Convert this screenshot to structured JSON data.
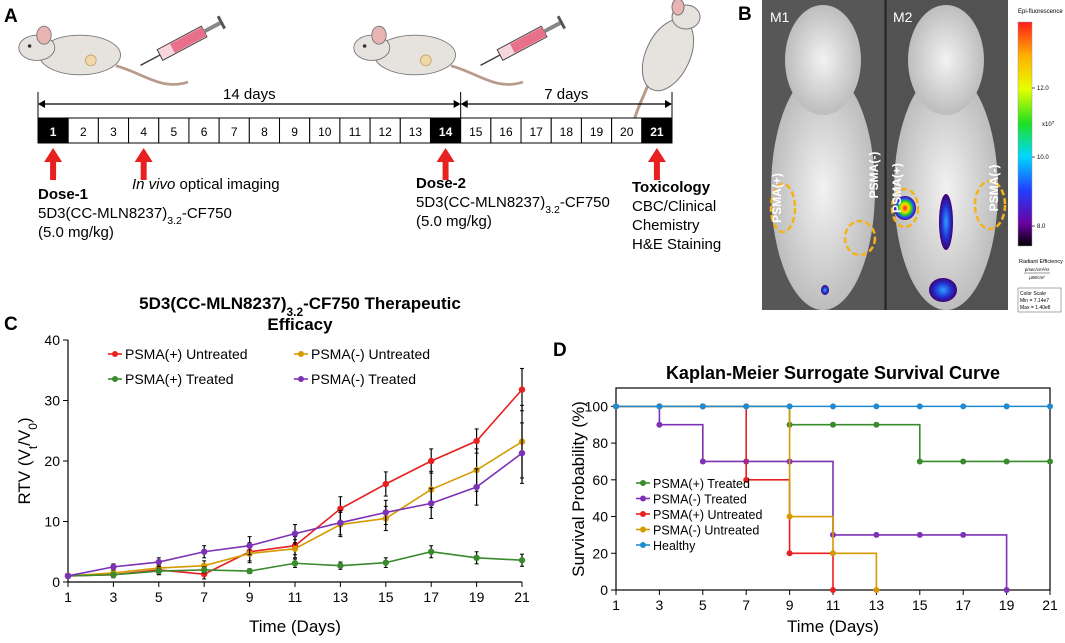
{
  "panel_a": {
    "label": "A",
    "days": [
      1,
      2,
      3,
      4,
      5,
      6,
      7,
      8,
      9,
      10,
      11,
      12,
      13,
      14,
      15,
      16,
      17,
      18,
      19,
      20,
      21
    ],
    "interval_1": "14 days",
    "interval_2": "7 days",
    "dose_1": {
      "title": "Dose-1",
      "drug": [
        "5D3(CC-MLN8237)",
        "3.2",
        "-CF750"
      ],
      "dose": "(5.0 mg/kg)"
    },
    "imaging": [
      "In vivo",
      " optical imaging"
    ],
    "dose_2": {
      "title": "Dose-2",
      "drug": [
        "5D3(CC-MLN8237)",
        "3.2",
        "-CF750"
      ],
      "dose": "(5.0 mg/kg)"
    },
    "toxicology": {
      "title": "Toxicology",
      "items": [
        "CBC/Clinical",
        "Chemistry",
        "H&E Staining"
      ]
    }
  },
  "panel_b": {
    "label": "B",
    "mice": [
      "M1",
      "M2"
    ],
    "tumors": [
      "PSMA(+)",
      "PSMA(-)",
      "PSMA(+)",
      "PSMA(-)"
    ],
    "colorbar": {
      "title": "Epi-fluorescence",
      "ticks": [
        "12.0",
        "10.0",
        "8.0"
      ],
      "scale": [
        "x10",
        "7"
      ],
      "unit": "Radiant Efficiency",
      "unit_numerator": "p/sec/cm²/sr",
      "unit_denominator": "µW/cm²",
      "scale_title": "Color Scale",
      "min": "Min = 7.14e7",
      "max": "Max = 1.40e8"
    }
  },
  "chart_data": [
    {
      "type": "line",
      "label": "C",
      "title": [
        "5D3(CC-MLN8237)",
        "3.2",
        "-CF750 Therapeutic",
        "Efficacy"
      ],
      "ylabel": [
        "RTV (V",
        "t",
        "/V",
        "0",
        ")"
      ],
      "xlabel": "Time (Days)",
      "x": [
        1,
        3,
        5,
        7,
        9,
        11,
        13,
        15,
        17,
        19,
        21
      ],
      "xlim": [
        1,
        21
      ],
      "xticks": [
        1,
        3,
        5,
        7,
        9,
        11,
        13,
        15,
        17,
        19,
        21
      ],
      "ylim": [
        0,
        40
      ],
      "yticks": [
        0,
        10,
        20,
        30,
        40
      ],
      "series": [
        {
          "name": "PSMA(+) Untreated",
          "color": "#e8201f",
          "values": [
            1,
            1.2,
            2.0,
            1.3,
            5.0,
            6.0,
            12.1,
            16.2,
            20.0,
            23.3,
            31.8
          ],
          "errors": [
            0.3,
            0.5,
            0.8,
            0.8,
            1.5,
            1.5,
            2.0,
            2.0,
            2.0,
            2.0,
            3.5
          ]
        },
        {
          "name": "PSMA(-) Untreated",
          "color": "#d59a00",
          "values": [
            1,
            1.5,
            2.3,
            2.7,
            4.7,
            5.5,
            9.5,
            10.5,
            15.3,
            18.5,
            23.2
          ],
          "errors": [
            0.3,
            0.5,
            0.7,
            0.8,
            1.5,
            1.5,
            2.0,
            2.0,
            3.0,
            3.5,
            6.0
          ]
        },
        {
          "name": "PSMA(+) Treated",
          "color": "#3a8a2e",
          "values": [
            1,
            1.2,
            1.8,
            2.0,
            1.8,
            3.1,
            2.7,
            3.2,
            5.0,
            4.0,
            3.6
          ],
          "errors": [
            0.2,
            0.3,
            0.5,
            0.5,
            0.4,
            0.7,
            0.6,
            0.8,
            1.0,
            1.0,
            1.0
          ]
        },
        {
          "name": "PSMA(-) Treated",
          "color": "#7d32b5",
          "values": [
            1,
            2.5,
            3.3,
            5.0,
            6.0,
            8.0,
            9.8,
            11.5,
            13.0,
            15.7,
            21.3
          ],
          "errors": [
            0.3,
            0.5,
            0.7,
            1.0,
            1.5,
            1.5,
            2.0,
            2.0,
            2.5,
            3.0,
            5.0
          ]
        }
      ]
    },
    {
      "type": "step",
      "label": "D",
      "title": "Kaplan-Meier Surrogate Survival Curve",
      "ylabel": "Survival Probability (%)",
      "xlabel": "Time (Days)",
      "x": [
        1,
        3,
        5,
        7,
        9,
        11,
        13,
        15,
        17,
        19,
        21
      ],
      "xlim": [
        1,
        21
      ],
      "xticks": [
        1,
        3,
        5,
        7,
        9,
        11,
        13,
        15,
        17,
        19,
        21
      ],
      "ylim": [
        0,
        110
      ],
      "yticks": [
        0,
        20,
        40,
        60,
        80,
        100
      ],
      "series": [
        {
          "name": "PSMA(+) Treated",
          "color": "#3a8a2e",
          "values": [
            100,
            100,
            100,
            100,
            90,
            90,
            90,
            70,
            70,
            70,
            70
          ]
        },
        {
          "name": "PSMA(-) Treated",
          "color": "#7d32b5",
          "values": [
            100,
            90,
            70,
            70,
            70,
            30,
            30,
            30,
            30,
            0,
            null
          ]
        },
        {
          "name": "PSMA(+) Untreated",
          "color": "#e8201f",
          "values": [
            100,
            100,
            100,
            60,
            20,
            0,
            null,
            null,
            null,
            null,
            null
          ]
        },
        {
          "name": "PSMA(-) Untreated",
          "color": "#d59a00",
          "values": [
            100,
            100,
            100,
            100,
            40,
            20,
            0,
            null,
            null,
            null,
            null
          ]
        },
        {
          "name": "Healthy",
          "color": "#1f8ad0",
          "values": [
            100,
            100,
            100,
            100,
            100,
            100,
            100,
            100,
            100,
            100,
            100
          ]
        }
      ]
    }
  ]
}
